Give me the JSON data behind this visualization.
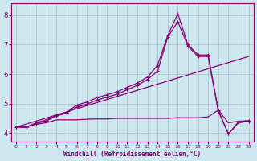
{
  "xlabel": "Windchill (Refroidissement éolien,°C)",
  "bg_color": "#cce8ee",
  "grid_color": "#aabccc",
  "line_color": "#880077",
  "xlim": [
    -0.5,
    23.5
  ],
  "ylim": [
    3.7,
    8.4
  ],
  "xticks": [
    0,
    1,
    2,
    3,
    4,
    5,
    6,
    7,
    8,
    9,
    10,
    11,
    12,
    13,
    14,
    15,
    16,
    17,
    18,
    19,
    20,
    21,
    22,
    23
  ],
  "yticks": [
    4,
    5,
    6,
    7,
    8
  ],
  "line1_x": [
    0,
    23
  ],
  "line1_y": [
    4.2,
    6.6
  ],
  "line2_x": [
    0,
    1,
    2,
    3,
    4,
    5,
    6,
    7,
    8,
    9,
    10,
    11,
    12,
    13,
    14,
    15,
    16,
    17,
    18,
    19,
    20,
    21,
    22,
    23
  ],
  "line2_y": [
    4.2,
    4.2,
    4.3,
    4.35,
    4.45,
    4.45,
    4.45,
    4.47,
    4.48,
    4.48,
    4.5,
    4.5,
    4.5,
    4.5,
    4.5,
    4.5,
    4.52,
    4.52,
    4.52,
    4.55,
    4.78,
    4.35,
    4.4,
    4.42
  ],
  "line3_x": [
    0,
    1,
    2,
    3,
    4,
    5,
    6,
    7,
    8,
    9,
    10,
    11,
    12,
    13,
    14,
    15,
    16,
    17,
    18,
    19,
    20,
    21,
    22,
    23
  ],
  "line3_y": [
    4.2,
    4.2,
    4.35,
    4.45,
    4.6,
    4.7,
    4.95,
    5.05,
    5.2,
    5.3,
    5.4,
    5.55,
    5.7,
    5.9,
    6.3,
    7.3,
    8.05,
    7.0,
    6.65,
    6.65,
    4.78,
    3.97,
    4.38,
    4.42
  ],
  "line4_x": [
    0,
    1,
    2,
    3,
    4,
    5,
    6,
    7,
    8,
    9,
    10,
    11,
    12,
    13,
    14,
    15,
    16,
    17,
    18,
    19,
    20,
    21,
    22,
    23
  ],
  "line4_y": [
    4.2,
    4.2,
    4.32,
    4.42,
    4.58,
    4.68,
    4.88,
    4.98,
    5.12,
    5.22,
    5.32,
    5.47,
    5.62,
    5.82,
    6.1,
    7.25,
    7.78,
    6.95,
    6.6,
    6.6,
    4.75,
    3.97,
    4.35,
    4.4
  ]
}
